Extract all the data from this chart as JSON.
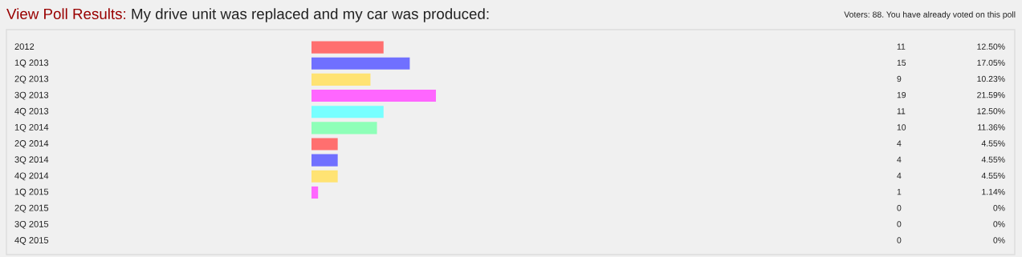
{
  "chart_data": {
    "type": "bar",
    "orientation": "horizontal",
    "title": "View Poll Results:",
    "subtitle": "My drive unit was replaced and my car was produced:",
    "annotations": [
      "Voters: 88. You have already voted on this poll",
      "11",
      "15",
      "9",
      "19",
      "11",
      "10",
      "4",
      "4",
      "4",
      "1",
      "0",
      "0",
      "0"
    ],
    "categories": [
      "2012",
      "1Q 2013",
      "2Q 2013",
      "3Q 2013",
      "4Q 2013",
      "1Q 2014",
      "2Q 2014",
      "3Q 2014",
      "4Q 2014",
      "1Q 2015",
      "2Q 2015",
      "3Q 2015",
      "4Q 2015"
    ],
    "values": [
      12.5,
      17.05,
      10.23,
      21.59,
      12.5,
      11.36,
      4.55,
      4.55,
      4.55,
      1.14,
      0,
      0,
      0
    ],
    "colors": [
      "#ff6f6f",
      "#7070ff",
      "#ffe373",
      "#ff66ff",
      "#77ffff",
      "#8effb8",
      "#ff6f6f",
      "#7070ff",
      "#ffe373",
      "#ff66ff",
      "#ff6f6f",
      "#7070ff",
      "#ffe373"
    ],
    "value_labels": [
      "12.50%",
      "17.05%",
      "10.23%",
      "21.59%",
      "12.50%",
      "11.36%",
      "4.55%",
      "4.55%",
      "4.55%",
      "1.14%",
      "0%",
      "0%",
      "0%"
    ],
    "tick_labels": false
  }
}
